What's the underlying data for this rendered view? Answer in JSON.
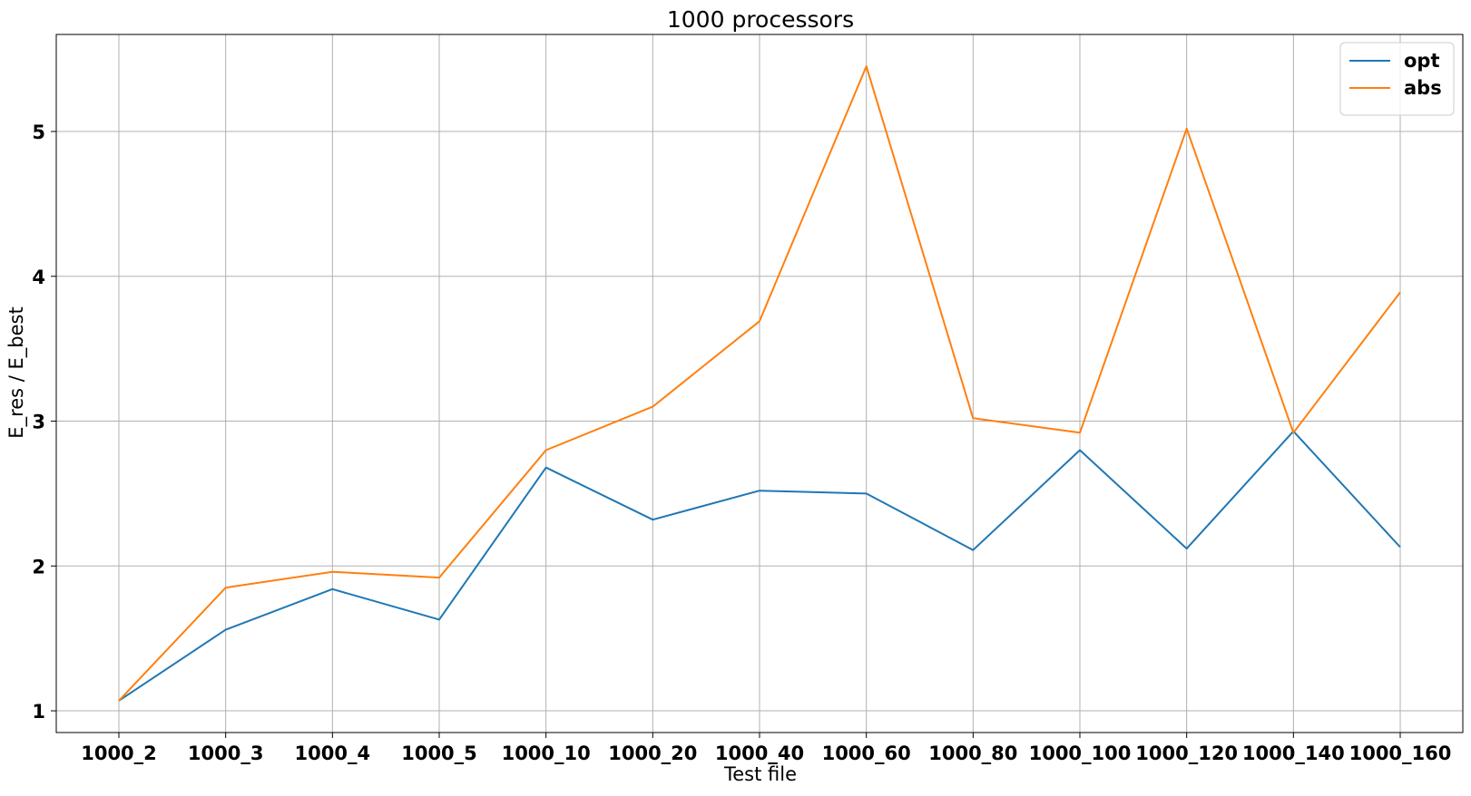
{
  "chart_data": {
    "type": "line",
    "title": "1000 processors",
    "xlabel": "Test file",
    "ylabel": "E_res / E_best",
    "categories": [
      "1000_2",
      "1000_3",
      "1000_4",
      "1000_5",
      "1000_10",
      "1000_20",
      "1000_40",
      "1000_60",
      "1000_80",
      "1000_100",
      "1000_120",
      "1000_140",
      "1000_160"
    ],
    "yticks": [
      1,
      2,
      3,
      4,
      5
    ],
    "ylim": [
      0.85,
      5.67
    ],
    "grid": true,
    "legend_position": "top-right",
    "series": [
      {
        "name": "opt",
        "color": "#1f77b4",
        "values": [
          1.07,
          1.56,
          1.84,
          1.63,
          2.68,
          2.32,
          2.52,
          2.5,
          2.11,
          2.8,
          2.12,
          2.93,
          2.13
        ]
      },
      {
        "name": "abs",
        "color": "#ff7f0e",
        "values": [
          1.07,
          1.85,
          1.96,
          1.92,
          2.8,
          3.1,
          3.69,
          5.45,
          3.02,
          2.92,
          5.02,
          2.92,
          3.89
        ]
      }
    ]
  }
}
